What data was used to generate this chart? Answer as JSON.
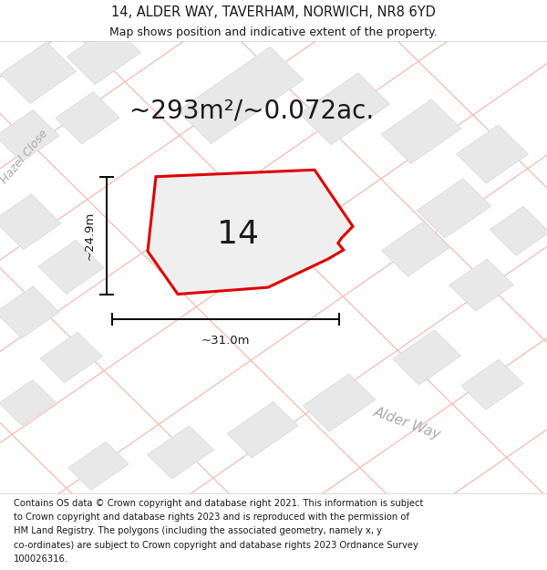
{
  "title_line1": "14, ALDER WAY, TAVERHAM, NORWICH, NR8 6YD",
  "title_line2": "Map shows position and indicative extent of the property.",
  "area_text": "~293m²/~0.072ac.",
  "plot_number": "14",
  "dim_height": "~24.9m",
  "dim_width": "~31.0m",
  "road_label1": "Alder Way",
  "road_label2": "Hazel Close",
  "footer_lines": [
    "Contains OS data © Crown copyright and database right 2021. This information is subject",
    "to Crown copyright and database rights 2023 and is reproduced with the permission of",
    "HM Land Registry. The polygons (including the associated geometry, namely x, y",
    "co-ordinates) are subject to Crown copyright and database rights 2023 Ordnance Survey",
    "100026316."
  ],
  "bg_color": "#ffffff",
  "map_bg": "#f7f7f7",
  "block_facecolor": "#e8e8e8",
  "block_edgecolor": "#dcdcdc",
  "road_line_color": "#f2bbb3",
  "plot_edge_color": "#dd0000",
  "plot_face_color": "#f0efef",
  "text_color": "#1a1a1a",
  "road_text_color": "#aaaaaa",
  "title_fontsize": 10.5,
  "subtitle_fontsize": 9,
  "area_fontsize": 20,
  "plot_num_fontsize": 26,
  "dim_fontsize": 9.5,
  "footer_fontsize": 7.2,
  "road_label_fontsize": 11,
  "hazel_fontsize": 9
}
